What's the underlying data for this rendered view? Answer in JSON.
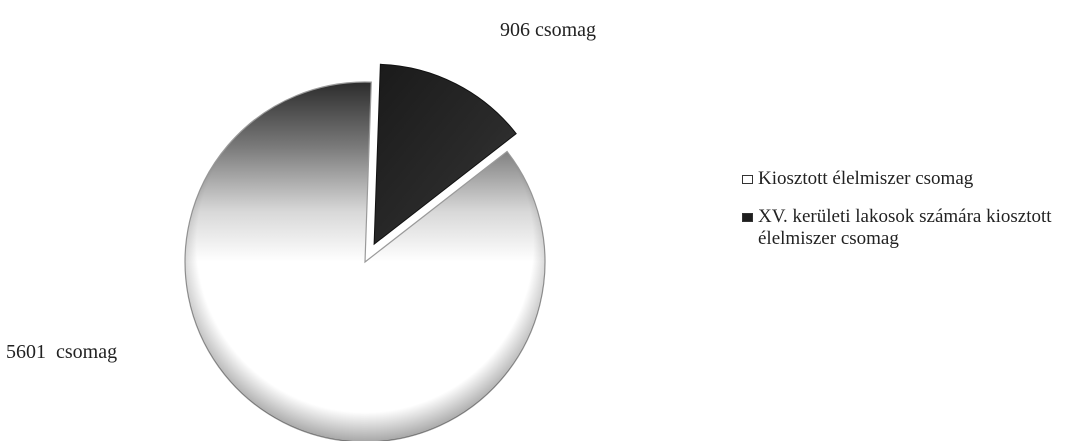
{
  "chart_data": {
    "type": "pie",
    "title": "",
    "slices": [
      {
        "name": "Kiosztott élelmiszer csomag",
        "value": 5601,
        "label": "5601  csomag",
        "color": "#ffffff",
        "exploded": false
      },
      {
        "name": "XV. kerületi lakosok számára kiosztott élelmiszer csomag",
        "value": 906,
        "label": "906 csomag",
        "color": "#1e1e1e",
        "exploded": true
      }
    ],
    "legend_position": "right",
    "style": "3d-shaded"
  },
  "legend": {
    "items": [
      {
        "label": "Kiosztott élelmiszer csomag",
        "color": "#ffffff"
      },
      {
        "label": "XV. kerületi lakosok számára kiosztott élelmiszer csomag",
        "color": "#1e1e1e"
      }
    ]
  }
}
